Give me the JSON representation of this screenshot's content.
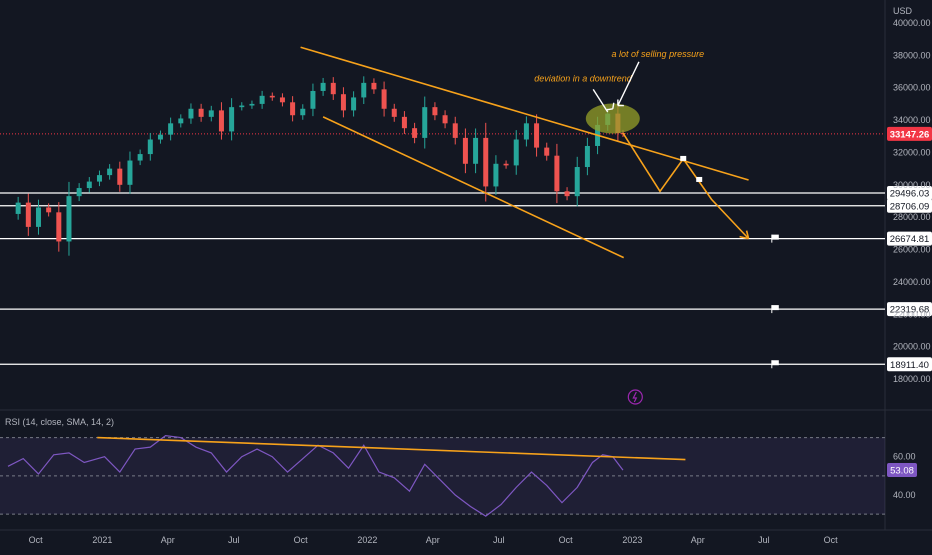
{
  "chart_data": {
    "type": "candlestick",
    "currency_label": "USD",
    "price_axis": {
      "ticks": [
        40000,
        38000,
        36000,
        34000,
        32000,
        30000,
        28000,
        26000,
        24000,
        22000,
        20000,
        18000
      ],
      "tick_labels": [
        "40000.00",
        "38000.00",
        "36000.00",
        "34000.00",
        "32000.00",
        "30000.00",
        "28000.00",
        "26000.00",
        "24000.00",
        "22000.00",
        "20000.00",
        "18000.00"
      ],
      "range": [
        16800,
        41200
      ]
    },
    "current_price": {
      "value": 33147.26,
      "label": "33147.26",
      "color": "#f23645"
    },
    "horizontal_levels": [
      {
        "value": 29496.03,
        "label": "29496.03"
      },
      {
        "value": 28706.09,
        "label": "28706.09"
      },
      {
        "value": 26674.81,
        "label": "26674.81"
      },
      {
        "value": 22319.68,
        "label": "22319.68"
      },
      {
        "value": 18911.4,
        "label": "18911.40"
      }
    ],
    "time_axis": {
      "labels": [
        "Oct",
        "2021",
        "Apr",
        "Jul",
        "Oct",
        "2022",
        "Apr",
        "Jul",
        "Oct",
        "2023",
        "Apr",
        "Jul",
        "Oct"
      ],
      "dates": [
        "2020-10-01",
        "2021-01-01",
        "2021-04-01",
        "2021-07-01",
        "2021-10-01",
        "2022-01-01",
        "2022-04-01",
        "2022-07-01",
        "2022-10-01",
        "2023-01-01",
        "2023-04-01",
        "2023-07-01",
        "2023-10-01"
      ]
    },
    "weekly_closes": [
      {
        "date": "2020-08-24",
        "close": 28200
      },
      {
        "date": "2020-09-07",
        "close": 28900
      },
      {
        "date": "2020-09-21",
        "close": 27400
      },
      {
        "date": "2020-10-05",
        "close": 28600
      },
      {
        "date": "2020-10-19",
        "close": 28300
      },
      {
        "date": "2020-11-02",
        "close": 26500
      },
      {
        "date": "2020-11-16",
        "close": 29300
      },
      {
        "date": "2020-11-30",
        "close": 29800
      },
      {
        "date": "2020-12-14",
        "close": 30200
      },
      {
        "date": "2020-12-28",
        "close": 30600
      },
      {
        "date": "2021-01-11",
        "close": 31000
      },
      {
        "date": "2021-01-25",
        "close": 30000
      },
      {
        "date": "2021-02-08",
        "close": 31500
      },
      {
        "date": "2021-02-22",
        "close": 31900
      },
      {
        "date": "2021-03-08",
        "close": 32800
      },
      {
        "date": "2021-03-22",
        "close": 33100
      },
      {
        "date": "2021-04-05",
        "close": 33800
      },
      {
        "date": "2021-04-19",
        "close": 34100
      },
      {
        "date": "2021-05-03",
        "close": 34700
      },
      {
        "date": "2021-05-17",
        "close": 34200
      },
      {
        "date": "2021-05-31",
        "close": 34600
      },
      {
        "date": "2021-06-14",
        "close": 33300
      },
      {
        "date": "2021-06-28",
        "close": 34800
      },
      {
        "date": "2021-07-12",
        "close": 34900
      },
      {
        "date": "2021-07-26",
        "close": 35000
      },
      {
        "date": "2021-08-09",
        "close": 35500
      },
      {
        "date": "2021-08-23",
        "close": 35400
      },
      {
        "date": "2021-09-06",
        "close": 35100
      },
      {
        "date": "2021-09-20",
        "close": 34300
      },
      {
        "date": "2021-10-04",
        "close": 34700
      },
      {
        "date": "2021-10-18",
        "close": 35800
      },
      {
        "date": "2021-11-01",
        "close": 36300
      },
      {
        "date": "2021-11-15",
        "close": 35600
      },
      {
        "date": "2021-11-29",
        "close": 34600
      },
      {
        "date": "2021-12-13",
        "close": 35400
      },
      {
        "date": "2021-12-27",
        "close": 36300
      },
      {
        "date": "2022-01-10",
        "close": 35900
      },
      {
        "date": "2022-01-24",
        "close": 34700
      },
      {
        "date": "2022-02-07",
        "close": 34200
      },
      {
        "date": "2022-02-21",
        "close": 33500
      },
      {
        "date": "2022-03-07",
        "close": 32900
      },
      {
        "date": "2022-03-21",
        "close": 34800
      },
      {
        "date": "2022-04-04",
        "close": 34300
      },
      {
        "date": "2022-04-18",
        "close": 33800
      },
      {
        "date": "2022-05-02",
        "close": 32900
      },
      {
        "date": "2022-05-16",
        "close": 31300
      },
      {
        "date": "2022-05-30",
        "close": 32900
      },
      {
        "date": "2022-06-13",
        "close": 29900
      },
      {
        "date": "2022-06-27",
        "close": 31300
      },
      {
        "date": "2022-07-11",
        "close": 31200
      },
      {
        "date": "2022-07-25",
        "close": 32800
      },
      {
        "date": "2022-08-08",
        "close": 33800
      },
      {
        "date": "2022-08-22",
        "close": 32300
      },
      {
        "date": "2022-09-05",
        "close": 31800
      },
      {
        "date": "2022-09-19",
        "close": 29600
      },
      {
        "date": "2022-10-03",
        "close": 29300
      },
      {
        "date": "2022-10-17",
        "close": 31100
      },
      {
        "date": "2022-10-31",
        "close": 32400
      },
      {
        "date": "2022-11-14",
        "close": 33700
      },
      {
        "date": "2022-11-28",
        "close": 34400
      },
      {
        "date": "2022-12-12",
        "close": 33200
      },
      {
        "date": "2022-12-19",
        "close": 33147.26
      }
    ],
    "annotations": [
      {
        "text": "deviation in a downtrend",
        "color": "#f7a21b"
      },
      {
        "text": "a lot of selling pressure",
        "color": "#f7a21b"
      }
    ],
    "trendlines": [
      {
        "name": "upper-channel",
        "from": {
          "date": "2021-10-01",
          "value": 38500
        },
        "to": {
          "date": "2023-06-10",
          "value": 30300
        }
      },
      {
        "name": "lower-channel",
        "from": {
          "date": "2021-11-01",
          "value": 34200
        },
        "to": {
          "date": "2022-12-20",
          "value": 25500
        }
      }
    ],
    "projection_path": [
      {
        "date": "2022-12-19",
        "value": 33200
      },
      {
        "date": "2023-02-08",
        "value": 29600
      },
      {
        "date": "2023-03-12",
        "value": 31600
      },
      {
        "date": "2023-04-20",
        "value": 29100
      },
      {
        "date": "2023-06-10",
        "value": 26674.81
      }
    ],
    "rsi": {
      "label": "RSI (14, close, SMA, 14, 2)",
      "current_value": 53.08,
      "current_label": "53.08",
      "ticks": [
        60.0,
        40.0
      ],
      "tick_labels": [
        "60.00",
        "40.00"
      ],
      "band": [
        30,
        70
      ],
      "range": [
        28,
        75
      ],
      "values": [
        {
          "date": "2020-08-24",
          "value": 55
        },
        {
          "date": "2020-09-14",
          "value": 59
        },
        {
          "date": "2020-10-05",
          "value": 51
        },
        {
          "date": "2020-10-26",
          "value": 61
        },
        {
          "date": "2020-11-16",
          "value": 62
        },
        {
          "date": "2020-12-07",
          "value": 57
        },
        {
          "date": "2021-01-04",
          "value": 60
        },
        {
          "date": "2021-01-25",
          "value": 52
        },
        {
          "date": "2021-02-15",
          "value": 64
        },
        {
          "date": "2021-03-08",
          "value": 65
        },
        {
          "date": "2021-03-29",
          "value": 71
        },
        {
          "date": "2021-04-19",
          "value": 70
        },
        {
          "date": "2021-05-10",
          "value": 65
        },
        {
          "date": "2021-05-31",
          "value": 62
        },
        {
          "date": "2021-06-21",
          "value": 52
        },
        {
          "date": "2021-07-12",
          "value": 60
        },
        {
          "date": "2021-08-02",
          "value": 64
        },
        {
          "date": "2021-08-23",
          "value": 60
        },
        {
          "date": "2021-09-13",
          "value": 52
        },
        {
          "date": "2021-10-04",
          "value": 59
        },
        {
          "date": "2021-10-25",
          "value": 66
        },
        {
          "date": "2021-11-15",
          "value": 62
        },
        {
          "date": "2021-12-06",
          "value": 54
        },
        {
          "date": "2021-12-27",
          "value": 66
        },
        {
          "date": "2022-01-17",
          "value": 52
        },
        {
          "date": "2022-02-07",
          "value": 49
        },
        {
          "date": "2022-02-28",
          "value": 42
        },
        {
          "date": "2022-03-21",
          "value": 56
        },
        {
          "date": "2022-04-11",
          "value": 48
        },
        {
          "date": "2022-05-02",
          "value": 40
        },
        {
          "date": "2022-05-23",
          "value": 34
        },
        {
          "date": "2022-06-13",
          "value": 29
        },
        {
          "date": "2022-07-04",
          "value": 35
        },
        {
          "date": "2022-07-25",
          "value": 44
        },
        {
          "date": "2022-08-15",
          "value": 52
        },
        {
          "date": "2022-09-05",
          "value": 45
        },
        {
          "date": "2022-09-26",
          "value": 36
        },
        {
          "date": "2022-10-17",
          "value": 44
        },
        {
          "date": "2022-11-07",
          "value": 57
        },
        {
          "date": "2022-11-21",
          "value": 61
        },
        {
          "date": "2022-12-05",
          "value": 60
        },
        {
          "date": "2022-12-19",
          "value": 53
        }
      ],
      "trendline": {
        "from": {
          "date": "2020-12-25",
          "value": 70
        },
        "to": {
          "date": "2023-03-15",
          "value": 58.5
        }
      }
    }
  }
}
